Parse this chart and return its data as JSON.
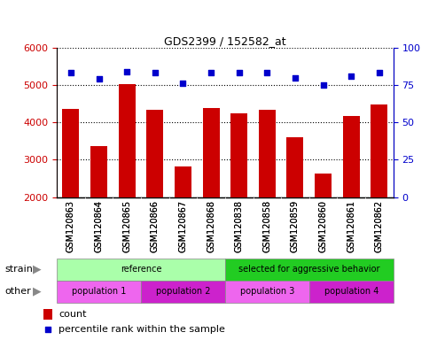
{
  "title": "GDS2399 / 152582_at",
  "samples": [
    "GSM120863",
    "GSM120864",
    "GSM120865",
    "GSM120866",
    "GSM120867",
    "GSM120868",
    "GSM120838",
    "GSM120858",
    "GSM120859",
    "GSM120860",
    "GSM120861",
    "GSM120862"
  ],
  "counts": [
    4370,
    3370,
    5020,
    4330,
    2830,
    4390,
    4250,
    4330,
    3600,
    2640,
    4180,
    4480
  ],
  "percentiles": [
    83,
    79,
    84,
    83,
    76,
    83,
    83,
    83,
    80,
    75,
    81,
    83
  ],
  "ylim_left": [
    2000,
    6000
  ],
  "ylim_right": [
    0,
    100
  ],
  "yticks_left": [
    2000,
    3000,
    4000,
    5000,
    6000
  ],
  "yticks_right": [
    0,
    25,
    50,
    75,
    100
  ],
  "bar_color": "#cc0000",
  "dot_color": "#0000cc",
  "grid_color": "#000000",
  "strain_groups": [
    {
      "label": "reference",
      "start": 0,
      "end": 6,
      "color": "#aaffaa"
    },
    {
      "label": "selected for aggressive behavior",
      "start": 6,
      "end": 12,
      "color": "#22cc22"
    }
  ],
  "other_groups": [
    {
      "label": "population 1",
      "start": 0,
      "end": 3,
      "color": "#ee66ee"
    },
    {
      "label": "population 2",
      "start": 3,
      "end": 6,
      "color": "#cc22cc"
    },
    {
      "label": "population 3",
      "start": 6,
      "end": 9,
      "color": "#ee66ee"
    },
    {
      "label": "population 4",
      "start": 9,
      "end": 12,
      "color": "#cc22cc"
    }
  ],
  "legend_count_color": "#cc0000",
  "legend_pct_color": "#0000cc",
  "tick_label_fontsize": 7,
  "bar_width": 0.6,
  "right_axis_color": "#0000cc",
  "tick_bg_color": "#cccccc",
  "box_edge_color": "#888888"
}
